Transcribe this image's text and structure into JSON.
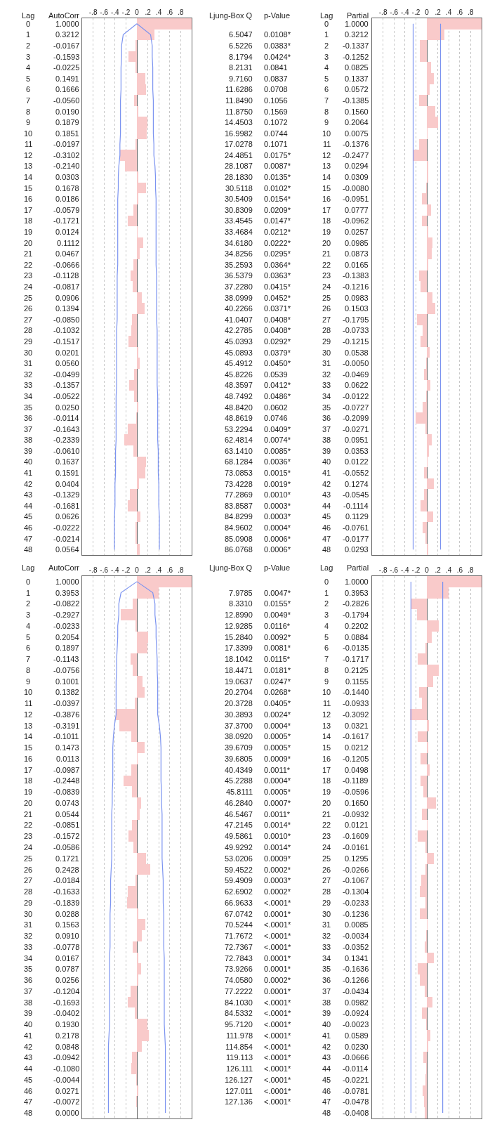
{
  "chart_data": [
    {
      "type": "bar",
      "orientation": "horizontal",
      "ylabel": "Lag",
      "xlabel": "AutoCorr",
      "grid": "x",
      "xlim": [
        -1,
        1
      ],
      "xticks": [
        {
          "value": -0.8,
          "label": "-.8"
        },
        {
          "value": -0.6,
          "label": "-.6"
        },
        {
          "value": -0.4,
          "label": "-.4"
        },
        {
          "value": -0.2,
          "label": "-.2"
        },
        0,
        {
          "value": 0.2,
          "label": ".2"
        },
        {
          "value": 0.4,
          "label": ".4"
        },
        {
          "value": 0.6,
          "label": ".6"
        },
        {
          "value": 0.8,
          "label": ".8"
        }
      ],
      "categories": [
        "0",
        "1",
        "2",
        "3",
        "4",
        "5",
        "6",
        "7",
        "8",
        "9",
        "10",
        "11",
        "12",
        "13",
        "14",
        "15",
        "16",
        "17",
        "18",
        "19",
        "20",
        "21",
        "22",
        "23",
        "24",
        "25",
        "26",
        "27",
        "28",
        "29",
        "30",
        "31",
        "32",
        "33",
        "34",
        "35",
        "36",
        "37",
        "38",
        "39",
        "40",
        "41",
        "42",
        "43",
        "44",
        "45",
        "46",
        "47",
        "48"
      ],
      "series": [
        {
          "type": "bar",
          "color": "#f9caca",
          "values": [
            1.0,
            0.3212,
            -0.0167,
            -0.1593,
            -0.0225,
            0.1491,
            0.1666,
            -0.056,
            0.019,
            0.1879,
            0.1851,
            -0.0197,
            -0.3102,
            -0.214,
            0.0303,
            0.1678,
            0.0186,
            -0.0579,
            -0.1721,
            0.0124,
            0.1112,
            0.0467,
            -0.0666,
            -0.1128,
            -0.0817,
            0.0906,
            0.1394,
            -0.085,
            -0.1032,
            -0.1517,
            0.0201,
            0.056,
            -0.0499,
            -0.1357,
            -0.0522,
            0.025,
            -0.0114,
            -0.1643,
            -0.2339,
            -0.061,
            0.1637,
            0.1591,
            0.0404,
            -0.1329,
            -0.1681,
            0.0626,
            -0.0222,
            -0.0214,
            0.0564
          ],
          "value_labels": [
            "1.0000",
            "0.3212",
            "-0.0167",
            "-0.1593",
            "-0.0225",
            "0.1491",
            "0.1666",
            "-0.0560",
            "0.0190",
            "0.1879",
            "0.1851",
            "-0.0197",
            "-0.3102",
            "-0.2140",
            "0.0303",
            "0.1678",
            "0.0186",
            "-0.0579",
            "-0.1721",
            "0.0124",
            "0.1112",
            "0.0467",
            "-0.0666",
            "-0.1128",
            "-0.0817",
            "0.0906",
            "0.1394",
            "-0.0850",
            "-0.1032",
            "-0.1517",
            "0.0201",
            "0.0560",
            "-0.0499",
            "-0.1357",
            "-0.0522",
            "0.0250",
            "-0.0114",
            "-0.1643",
            "-0.2339",
            "-0.0610",
            "0.1637",
            "0.1591",
            "0.0404",
            "-0.1329",
            "-0.1681",
            "0.0626",
            "-0.0222",
            "-0.0214",
            "0.0564"
          ]
        },
        {
          "type": "line",
          "color": "#7b93f0",
          "values": [
            0,
            0.25,
            0.28,
            0.28,
            0.29,
            0.29,
            0.29,
            0.3,
            0.3,
            0.3,
            0.3,
            0.31,
            0.31,
            0.33,
            0.34,
            0.34,
            0.35,
            0.35,
            0.35,
            0.35,
            0.35,
            0.35,
            0.35,
            0.36,
            0.36,
            0.36,
            0.36,
            0.36,
            0.37,
            0.37,
            0.37,
            0.37,
            0.37,
            0.37,
            0.38,
            0.38,
            0.38,
            0.38,
            0.38,
            0.39,
            0.39,
            0.39,
            0.4,
            0.4,
            0.4,
            0.41,
            0.41,
            0.41,
            0.41
          ]
        },
        {
          "type": "line",
          "color": "#7b93f0",
          "values": [
            0,
            -0.25,
            -0.28,
            -0.28,
            -0.29,
            -0.29,
            -0.29,
            -0.3,
            -0.3,
            -0.3,
            -0.3,
            -0.31,
            -0.31,
            -0.33,
            -0.34,
            -0.34,
            -0.35,
            -0.35,
            -0.35,
            -0.35,
            -0.35,
            -0.35,
            -0.35,
            -0.36,
            -0.36,
            -0.36,
            -0.36,
            -0.36,
            -0.37,
            -0.37,
            -0.37,
            -0.37,
            -0.37,
            -0.37,
            -0.38,
            -0.38,
            -0.38,
            -0.38,
            -0.38,
            -0.39,
            -0.39,
            -0.39,
            -0.4,
            -0.4,
            -0.4,
            -0.41,
            -0.41,
            -0.41,
            -0.41
          ]
        }
      ]
    },
    {
      "type": "other",
      "annotations": [
        "Ljung-Box Q",
        "p-Value",
        "6.5047",
        "0.0108*",
        "6.5226",
        "0.0383*",
        "8.1794",
        "0.0424*",
        "8.2131",
        "0.0841",
        "9.7160",
        "0.0837",
        "11.6286",
        "0.0708",
        "11.8490",
        "0.1056",
        "11.8750",
        "0.1569",
        "14.4503",
        "0.1072",
        "16.9982",
        "0.0744",
        "17.0278",
        "0.1071",
        "24.4851",
        "0.0175*",
        "28.1087",
        "0.0087*",
        "28.1830",
        "0.0135*",
        "30.5118",
        "0.0102*",
        "30.5409",
        "0.0154*",
        "30.8309",
        "0.0209*",
        "33.4545",
        "0.0147*",
        "33.4684",
        "0.0212*",
        "34.6180",
        "0.0222*",
        "34.8256",
        "0.0295*",
        "35.2593",
        "0.0364*",
        "36.5379",
        "0.0363*",
        "37.2280",
        "0.0415*",
        "38.0999",
        "0.0452*",
        "40.2266",
        "0.0371*",
        "41.0407",
        "0.0408*",
        "42.2785",
        "0.0408*",
        "45.0393",
        "0.0292*",
        "45.0893",
        "0.0379*",
        "45.4912",
        "0.0450*",
        "45.8226",
        "0.0539",
        "48.3597",
        "0.0412*",
        "48.7492",
        "0.0486*",
        "48.8420",
        "0.0602",
        "48.8619",
        "0.0746",
        "53.2294",
        "0.0409*",
        "62.4814",
        "0.0074*",
        "63.1410",
        "0.0085*",
        "68.1284",
        "0.0036*",
        "73.0853",
        "0.0015*",
        "73.4228",
        "0.0019*",
        "77.2869",
        "0.0010*",
        "83.8587",
        "0.0003*",
        "84.8299",
        "0.0003*",
        "84.9602",
        "0.0004*",
        "85.0908",
        "0.0006*",
        "86.0768",
        "0.0006*"
      ]
    },
    {
      "type": "bar",
      "orientation": "horizontal",
      "ylabel": "Lag",
      "xlabel": "Partial",
      "grid": "x",
      "xlim": [
        -1,
        1
      ],
      "xticks": [
        {
          "value": -0.8,
          "label": "-.8"
        },
        {
          "value": -0.6,
          "label": "-.6"
        },
        {
          "value": -0.4,
          "label": "-.4"
        },
        {
          "value": -0.2,
          "label": "-.2"
        },
        0,
        {
          "value": 0.2,
          "label": ".2"
        },
        {
          "value": 0.4,
          "label": ".4"
        },
        {
          "value": 0.6,
          "label": ".6"
        },
        {
          "value": 0.8,
          "label": ".8"
        }
      ],
      "categories": [
        "0",
        "1",
        "2",
        "3",
        "4",
        "5",
        "6",
        "7",
        "8",
        "9",
        "10",
        "11",
        "12",
        "13",
        "14",
        "15",
        "16",
        "17",
        "18",
        "19",
        "20",
        "21",
        "22",
        "23",
        "24",
        "25",
        "26",
        "27",
        "28",
        "29",
        "30",
        "31",
        "32",
        "33",
        "34",
        "35",
        "36",
        "37",
        "38",
        "39",
        "40",
        "41",
        "42",
        "43",
        "44",
        "45",
        "46",
        "47",
        "48"
      ],
      "series": [
        {
          "type": "bar",
          "color": "#f9caca",
          "values": [
            1.0,
            0.3212,
            -0.1337,
            -0.1252,
            0.0825,
            0.1337,
            0.0572,
            -0.1385,
            0.156,
            0.2064,
            0.0075,
            -0.1376,
            -0.2477,
            0.0294,
            0.0309,
            -0.008,
            -0.0951,
            0.0777,
            -0.0962,
            0.0257,
            0.0985,
            0.0873,
            0.0165,
            -0.1383,
            -0.1216,
            0.0983,
            0.1503,
            -0.1795,
            -0.0733,
            -0.1215,
            0.0538,
            -0.005,
            -0.0469,
            0.0622,
            -0.0122,
            -0.0727,
            -0.2099,
            -0.0271,
            0.0951,
            0.0353,
            0.0122,
            -0.0552,
            0.1274,
            -0.0545,
            -0.1114,
            0.1129,
            -0.0761,
            -0.0177,
            0.0293
          ],
          "value_labels": [
            "1.0000",
            "0.3212",
            "-0.1337",
            "-0.1252",
            "0.0825",
            "0.1337",
            "0.0572",
            "-0.1385",
            "0.1560",
            "0.2064",
            "0.0075",
            "-0.1376",
            "-0.2477",
            "0.0294",
            "0.0309",
            "-0.0080",
            "-0.0951",
            "0.0777",
            "-0.0962",
            "0.0257",
            "0.0985",
            "0.0873",
            "0.0165",
            "-0.1383",
            "-0.1216",
            "0.0983",
            "0.1503",
            "-0.1795",
            "-0.0733",
            "-0.1215",
            "0.0538",
            "-0.0050",
            "-0.0469",
            "0.0622",
            "-0.0122",
            "-0.0727",
            "-0.2099",
            "-0.0271",
            "0.0951",
            "0.0353",
            "0.0122",
            "-0.0552",
            "0.1274",
            "-0.0545",
            "-0.1114",
            "0.1129",
            "-0.0761",
            "-0.0177",
            "0.0293"
          ]
        },
        {
          "type": "line",
          "color": "#7b93f0",
          "values": [
            0.25,
            0.25,
            0.25,
            0.25,
            0.25,
            0.25,
            0.25,
            0.25,
            0.25,
            0.25,
            0.25,
            0.25,
            0.25,
            0.25,
            0.25,
            0.25,
            0.25,
            0.25,
            0.25,
            0.25,
            0.25,
            0.25,
            0.25,
            0.25,
            0.25,
            0.25,
            0.25,
            0.25,
            0.25,
            0.25,
            0.25,
            0.25,
            0.25,
            0.25,
            0.25,
            0.25,
            0.25,
            0.25,
            0.25,
            0.25,
            0.25,
            0.25,
            0.25,
            0.25,
            0.25,
            0.25,
            0.25,
            0.25,
            0.25
          ]
        },
        {
          "type": "line",
          "color": "#7b93f0",
          "values": [
            -0.25,
            -0.25,
            -0.25,
            -0.25,
            -0.25,
            -0.25,
            -0.25,
            -0.25,
            -0.25,
            -0.25,
            -0.25,
            -0.25,
            -0.25,
            -0.25,
            -0.25,
            -0.25,
            -0.25,
            -0.25,
            -0.25,
            -0.25,
            -0.25,
            -0.25,
            -0.25,
            -0.25,
            -0.25,
            -0.25,
            -0.25,
            -0.25,
            -0.25,
            -0.25,
            -0.25,
            -0.25,
            -0.25,
            -0.25,
            -0.25,
            -0.25,
            -0.25,
            -0.25,
            -0.25,
            -0.25,
            -0.25,
            -0.25,
            -0.25,
            -0.25,
            -0.25,
            -0.25,
            -0.25,
            -0.25,
            -0.25
          ]
        }
      ]
    },
    {
      "type": "bar",
      "orientation": "horizontal",
      "ylabel": "Lag",
      "xlabel": "AutoCorr",
      "grid": "x",
      "xlim": [
        -1,
        1
      ],
      "xticks": [
        {
          "value": -0.8,
          "label": "-.8"
        },
        {
          "value": -0.6,
          "label": "-.6"
        },
        {
          "value": -0.4,
          "label": "-.4"
        },
        {
          "value": -0.2,
          "label": "-.2"
        },
        0,
        {
          "value": 0.2,
          "label": ".2"
        },
        {
          "value": 0.4,
          "label": ".4"
        },
        {
          "value": 0.6,
          "label": ".6"
        },
        {
          "value": 0.8,
          "label": ".8"
        }
      ],
      "categories": [
        "0",
        "1",
        "2",
        "3",
        "4",
        "5",
        "6",
        "7",
        "8",
        "9",
        "10",
        "11",
        "12",
        "13",
        "14",
        "15",
        "16",
        "17",
        "18",
        "19",
        "20",
        "21",
        "22",
        "23",
        "24",
        "25",
        "26",
        "27",
        "28",
        "29",
        "30",
        "31",
        "32",
        "33",
        "34",
        "35",
        "36",
        "37",
        "38",
        "39",
        "40",
        "41",
        "42",
        "43",
        "44",
        "45",
        "46",
        "47",
        "48"
      ],
      "series": [
        {
          "type": "bar",
          "color": "#f9caca",
          "values": [
            1.0,
            0.3953,
            -0.0822,
            -0.2927,
            -0.0233,
            0.2054,
            0.1897,
            -0.1143,
            -0.0756,
            0.1001,
            0.1382,
            -0.0397,
            -0.3876,
            -0.3191,
            -0.1011,
            0.1473,
            0.0113,
            -0.0987,
            -0.2448,
            -0.0839,
            0.0743,
            0.0544,
            -0.0851,
            -0.1572,
            -0.0586,
            0.1721,
            0.2428,
            -0.0184,
            -0.1633,
            -0.1839,
            0.0288,
            0.1563,
            0.091,
            -0.0778,
            0.0167,
            0.0787,
            0.0256,
            -0.1204,
            -0.1693,
            -0.0402,
            0.193,
            0.2178,
            0.0848,
            -0.0942,
            -0.108,
            -0.0044,
            0.0271,
            -0.0072,
            0.0
          ],
          "value_labels": [
            "1.0000",
            "0.3953",
            "-0.0822",
            "-0.2927",
            "-0.0233",
            "0.2054",
            "0.1897",
            "-0.1143",
            "-0.0756",
            "0.1001",
            "0.1382",
            "-0.0397",
            "-0.3876",
            "-0.3191",
            "-0.1011",
            "0.1473",
            "0.0113",
            "-0.0987",
            "-0.2448",
            "-0.0839",
            "0.0743",
            "0.0544",
            "-0.0851",
            "-0.1572",
            "-0.0586",
            "0.1721",
            "0.2428",
            "-0.0184",
            "-0.1633",
            "-0.1839",
            "0.0288",
            "0.1563",
            "0.0910",
            "-0.0778",
            "0.0167",
            "0.0787",
            "0.0256",
            "-0.1204",
            "-0.1693",
            "-0.0402",
            "0.1930",
            "0.2178",
            "0.0848",
            "-0.0942",
            "-0.1080",
            "-0.0044",
            "0.0271",
            "-0.0072",
            "0.0000"
          ]
        },
        {
          "type": "line",
          "color": "#7b93f0",
          "values": [
            0,
            0.29,
            0.33,
            0.33,
            0.35,
            0.35,
            0.36,
            0.37,
            0.37,
            0.38,
            0.38,
            0.38,
            0.38,
            0.41,
            0.43,
            0.44,
            0.44,
            0.44,
            0.44,
            0.45,
            0.45,
            0.46,
            0.46,
            0.46,
            0.46,
            0.46,
            0.47,
            0.48,
            0.48,
            0.48,
            0.49,
            0.49,
            0.49,
            0.49,
            0.5,
            0.5,
            0.5,
            0.5,
            0.5,
            0.5,
            0.5,
            0.51,
            0.52,
            0.52,
            0.52,
            0.52,
            0.52,
            0.52,
            0.52
          ]
        },
        {
          "type": "line",
          "color": "#7b93f0",
          "values": [
            0,
            -0.29,
            -0.33,
            -0.33,
            -0.35,
            -0.35,
            -0.36,
            -0.37,
            -0.37,
            -0.38,
            -0.38,
            -0.38,
            -0.38,
            -0.41,
            -0.43,
            -0.44,
            -0.44,
            -0.44,
            -0.44,
            -0.45,
            -0.45,
            -0.46,
            -0.46,
            -0.46,
            -0.46,
            -0.46,
            -0.47,
            -0.48,
            -0.48,
            -0.48,
            -0.49,
            -0.49,
            -0.49,
            -0.49,
            -0.5,
            -0.5,
            -0.5,
            -0.5,
            -0.5,
            -0.5,
            -0.5,
            -0.51,
            -0.52,
            -0.52,
            -0.52,
            -0.52,
            -0.52,
            -0.52,
            -0.52
          ]
        }
      ]
    },
    {
      "type": "other",
      "annotations": [
        "Ljung-Box Q",
        "p-Value",
        "7.9785",
        "0.0047*",
        "8.3310",
        "0.0155*",
        "12.8990",
        "0.0049*",
        "12.9285",
        "0.0116*",
        "15.2840",
        "0.0092*",
        "17.3399",
        "0.0081*",
        "18.1042",
        "0.0115*",
        "18.4471",
        "0.0181*",
        "19.0637",
        "0.0247*",
        "20.2704",
        "0.0268*",
        "20.3728",
        "0.0405*",
        "30.3893",
        "0.0024*",
        "37.3700",
        "0.0004*",
        "38.0920",
        "0.0005*",
        "39.6709",
        "0.0005*",
        "39.6805",
        "0.0009*",
        "40.4349",
        "0.0011*",
        "45.2288",
        "0.0004*",
        "45.8111",
        "0.0005*",
        "46.2840",
        "0.0007*",
        "46.5467",
        "0.0011*",
        "47.2145",
        "0.0014*",
        "49.5861",
        "0.0010*",
        "49.9292",
        "0.0014*",
        "53.0206",
        "0.0009*",
        "59.4522",
        "0.0002*",
        "59.4909",
        "0.0003*",
        "62.6902",
        "0.0002*",
        "66.9633",
        "<.0001*",
        "67.0742",
        "0.0001*",
        "70.5244",
        "<.0001*",
        "71.7672",
        "<.0001*",
        "72.7367",
        "<.0001*",
        "72.7843",
        "0.0001*",
        "73.9266",
        "0.0001*",
        "74.0580",
        "0.0002*",
        "77.2222",
        "0.0001*",
        "84.1030",
        "<.0001*",
        "84.5332",
        "<.0001*",
        "95.7120",
        "<.0001*",
        "111.978",
        "<.0001*",
        "114.854",
        "<.0001*",
        "119.113",
        "<.0001*",
        "126.111",
        "<.0001*",
        "126.127",
        "<.0001*",
        "127.011",
        "<.0001*",
        "127.136",
        "<.0001*"
      ]
    },
    {
      "type": "bar",
      "orientation": "horizontal",
      "ylabel": "Lag",
      "xlabel": "Partial",
      "grid": "x",
      "xlim": [
        -1,
        1
      ],
      "xticks": [
        {
          "value": -0.8,
          "label": "-.8"
        },
        {
          "value": -0.6,
          "label": "-.6"
        },
        {
          "value": -0.4,
          "label": "-.4"
        },
        {
          "value": -0.2,
          "label": "-.2"
        },
        0,
        {
          "value": 0.2,
          "label": ".2"
        },
        {
          "value": 0.4,
          "label": ".4"
        },
        {
          "value": 0.6,
          "label": ".6"
        },
        {
          "value": 0.8,
          "label": ".8"
        }
      ],
      "categories": [
        "0",
        "1",
        "2",
        "3",
        "4",
        "5",
        "6",
        "7",
        "8",
        "9",
        "10",
        "11",
        "12",
        "13",
        "14",
        "15",
        "16",
        "17",
        "18",
        "19",
        "20",
        "21",
        "22",
        "23",
        "24",
        "25",
        "26",
        "27",
        "28",
        "29",
        "30",
        "31",
        "32",
        "33",
        "34",
        "35",
        "36",
        "37",
        "38",
        "39",
        "40",
        "41",
        "42",
        "43",
        "44",
        "45",
        "46",
        "47",
        "48"
      ],
      "series": [
        {
          "type": "bar",
          "color": "#f9caca",
          "values": [
            1.0,
            0.3953,
            -0.2826,
            -0.1794,
            0.2202,
            0.0884,
            -0.0135,
            -0.1717,
            0.2125,
            0.1155,
            -0.144,
            -0.0933,
            -0.3092,
            0.0321,
            -0.1617,
            0.0212,
            -0.1205,
            0.0498,
            -0.1189,
            -0.0596,
            0.165,
            -0.0932,
            0.0121,
            -0.1609,
            -0.0161,
            0.1295,
            -0.0266,
            -0.1067,
            -0.1304,
            -0.0233,
            -0.1236,
            0.0085,
            -0.0034,
            -0.0352,
            0.1341,
            -0.1636,
            -0.1266,
            -0.0434,
            0.0982,
            -0.0924,
            -0.0023,
            0.0589,
            0.023,
            -0.0666,
            -0.0114,
            -0.0221,
            -0.0781,
            -0.0478,
            -0.0408
          ],
          "value_labels": [
            "1.0000",
            "0.3953",
            "-0.2826",
            "-0.1794",
            "0.2202",
            "0.0884",
            "-0.0135",
            "-0.1717",
            "0.2125",
            "0.1155",
            "-0.1440",
            "-0.0933",
            "-0.3092",
            "0.0321",
            "-0.1617",
            "0.0212",
            "-0.1205",
            "0.0498",
            "-0.1189",
            "-0.0596",
            "0.1650",
            "-0.0932",
            "0.0121",
            "-0.1609",
            "-0.0161",
            "0.1295",
            "-0.0266",
            "-0.1067",
            "-0.1304",
            "-0.0233",
            "-0.1236",
            "0.0085",
            "-0.0034",
            "-0.0352",
            "0.1341",
            "-0.1636",
            "-0.1266",
            "-0.0434",
            "0.0982",
            "-0.0924",
            "-0.0023",
            "0.0589",
            "0.0230",
            "-0.0666",
            "-0.0114",
            "-0.0221",
            "-0.0781",
            "-0.0478",
            "-0.0408"
          ]
        },
        {
          "type": "line",
          "color": "#7b93f0",
          "values": [
            0.29,
            0.29,
            0.29,
            0.29,
            0.29,
            0.29,
            0.29,
            0.29,
            0.29,
            0.29,
            0.29,
            0.29,
            0.29,
            0.29,
            0.29,
            0.29,
            0.29,
            0.29,
            0.29,
            0.29,
            0.29,
            0.29,
            0.29,
            0.29,
            0.29,
            0.29,
            0.29,
            0.29,
            0.29,
            0.29,
            0.29,
            0.29,
            0.29,
            0.29,
            0.29,
            0.29,
            0.29,
            0.29,
            0.29,
            0.29,
            0.29,
            0.29,
            0.29,
            0.29,
            0.29,
            0.29,
            0.29,
            0.29,
            0.29
          ]
        },
        {
          "type": "line",
          "color": "#7b93f0",
          "values": [
            -0.29,
            -0.29,
            -0.29,
            -0.29,
            -0.29,
            -0.29,
            -0.29,
            -0.29,
            -0.29,
            -0.29,
            -0.29,
            -0.29,
            -0.29,
            -0.29,
            -0.29,
            -0.29,
            -0.29,
            -0.29,
            -0.29,
            -0.29,
            -0.29,
            -0.29,
            -0.29,
            -0.29,
            -0.29,
            -0.29,
            -0.29,
            -0.29,
            -0.29,
            -0.29,
            -0.29,
            -0.29,
            -0.29,
            -0.29,
            -0.29,
            -0.29,
            -0.29,
            -0.29,
            -0.29,
            -0.29,
            -0.29,
            -0.29,
            -0.29,
            -0.29,
            -0.29,
            -0.29,
            -0.29,
            -0.29,
            -0.29
          ]
        }
      ]
    }
  ]
}
